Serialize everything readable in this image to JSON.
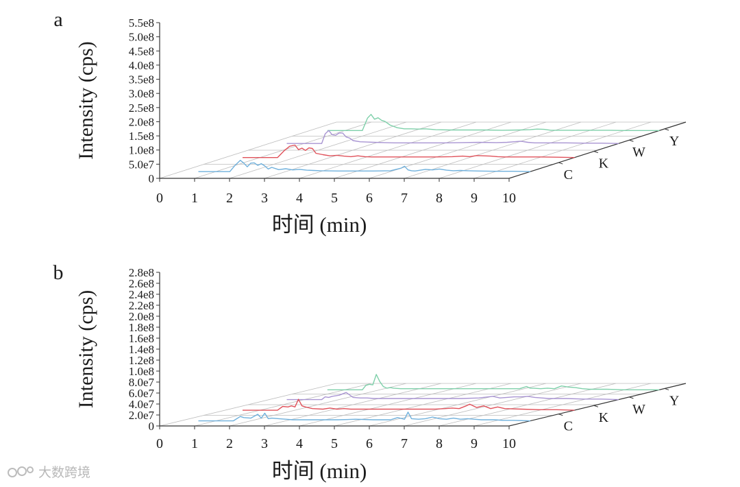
{
  "chart_data": [
    {
      "type": "line",
      "panel_label": "a",
      "ylabel": "Intensity (cps)",
      "xlabel": "时间 (min)",
      "xlim": [
        0,
        10
      ],
      "ylim": [
        0,
        55000000
      ],
      "x_ticks": [
        0,
        1,
        2,
        3,
        4,
        5,
        6,
        7,
        8,
        9,
        10
      ],
      "x_tick_labels": [
        "0",
        "1",
        "2",
        "3",
        "4",
        "5",
        "6",
        "7",
        "8",
        "9",
        "10"
      ],
      "y_ticks": [
        0,
        50000000,
        100000000,
        150000000,
        200000000,
        250000000,
        300000000,
        350000000,
        400000000,
        450000000,
        500000000,
        550000000
      ],
      "y_tick_labels": [
        "0",
        "5.0e7",
        "1.0e8",
        "1.5e8",
        "2.0e8",
        "2.5e8",
        "3.0e8",
        "3.5e8",
        "4.0e8",
        "4.5e8",
        "5.0e8",
        "5.5e8"
      ],
      "depth_categories": [
        "C",
        "K",
        "W",
        "Y"
      ],
      "grid": true,
      "series": [
        {
          "name": "C",
          "color": "#6fb0dc",
          "x": [
            0.5,
            1.0,
            1.4,
            1.55,
            1.7,
            1.8,
            1.9,
            2.0,
            2.1,
            2.2,
            2.3,
            2.4,
            2.5,
            2.6,
            2.8,
            3.0,
            3.2,
            3.4,
            3.6,
            3.8,
            4.0,
            4.5,
            5.0,
            5.5,
            6.0,
            6.3,
            6.4,
            6.5,
            6.6,
            6.7,
            7.0,
            7.2,
            7.4,
            7.6,
            7.8,
            8.0,
            8.2,
            8.5,
            9.0,
            9.5,
            10.0
          ],
          "y": [
            0,
            0,
            0,
            22000000,
            40000000,
            30000000,
            17000000,
            30000000,
            31000000,
            22000000,
            28000000,
            20000000,
            9000000,
            15000000,
            7000000,
            10000000,
            6000000,
            8000000,
            5000000,
            4000000,
            3000000,
            2000000,
            2000000,
            2000000,
            3000000,
            12000000,
            19000000,
            6000000,
            3000000,
            2000000,
            8000000,
            6000000,
            9000000,
            5000000,
            3000000,
            4000000,
            3000000,
            2000000,
            1000000,
            1000000,
            0
          ]
        },
        {
          "name": "K",
          "color": "#e0515a",
          "x": [
            0.5,
            1.0,
            1.5,
            1.7,
            1.85,
            2.0,
            2.1,
            2.2,
            2.3,
            2.4,
            2.5,
            2.6,
            2.8,
            3.0,
            3.2,
            3.4,
            3.6,
            3.8,
            4.0,
            4.2,
            4.5,
            5.0,
            5.5,
            6.0,
            6.5,
            6.8,
            7.0,
            7.2,
            7.4,
            7.6,
            7.8,
            8.0,
            8.5,
            9.0,
            9.5,
            10.0
          ],
          "y": [
            0,
            0,
            0,
            25000000,
            40000000,
            44000000,
            28000000,
            33000000,
            25000000,
            34000000,
            32000000,
            15000000,
            10000000,
            6000000,
            8000000,
            5000000,
            3000000,
            6000000,
            3000000,
            2000000,
            2000000,
            2000000,
            2000000,
            2000000,
            3000000,
            5000000,
            3000000,
            7000000,
            6000000,
            5000000,
            3000000,
            2000000,
            2000000,
            2000000,
            1000000,
            0
          ]
        },
        {
          "name": "W",
          "color": "#a894d2",
          "x": [
            0.5,
            1.0,
            1.5,
            1.6,
            1.7,
            1.8,
            1.9,
            2.0,
            2.1,
            2.2,
            2.3,
            2.4,
            2.6,
            2.8,
            3.0,
            3.3,
            3.6,
            4.0,
            4.5,
            5.0,
            5.5,
            6.0,
            6.5,
            6.8,
            7.0,
            7.2,
            7.4,
            7.6,
            8.0,
            8.5,
            9.0,
            9.5,
            10.0
          ],
          "y": [
            0,
            0,
            0,
            34000000,
            46000000,
            31000000,
            29000000,
            37000000,
            37000000,
            23000000,
            19000000,
            10000000,
            6000000,
            5000000,
            4000000,
            3000000,
            2000000,
            2000000,
            2000000,
            2000000,
            3000000,
            4000000,
            3000000,
            4000000,
            6000000,
            8000000,
            4000000,
            2000000,
            2000000,
            2000000,
            1000000,
            1000000,
            0
          ]
        },
        {
          "name": "Y",
          "color": "#7fd0aa",
          "x": [
            0.5,
            1.0,
            1.5,
            1.65,
            1.75,
            1.85,
            1.95,
            2.05,
            2.15,
            2.3,
            2.5,
            2.7,
            2.9,
            3.1,
            3.3,
            3.6,
            4.0,
            4.5,
            5.0,
            5.5,
            6.0,
            6.3,
            6.5,
            6.7,
            6.9,
            7.2,
            7.5,
            8.0,
            8.5,
            9.0,
            9.5,
            10.0
          ],
          "y": [
            0,
            0,
            0,
            44000000,
            57000000,
            40000000,
            45000000,
            36000000,
            32000000,
            19000000,
            10000000,
            6000000,
            6000000,
            5000000,
            6000000,
            3000000,
            2000000,
            2000000,
            2000000,
            1000000,
            2000000,
            3000000,
            5000000,
            4000000,
            1000000,
            1000000,
            1000000,
            1000000,
            1000000,
            0,
            0,
            0
          ]
        }
      ]
    },
    {
      "type": "line",
      "panel_label": "b",
      "ylabel": "Intensity (cps)",
      "xlabel": "时间 (min)",
      "xlim": [
        0,
        10
      ],
      "ylim": [
        0,
        28000000
      ],
      "x_ticks": [
        0,
        1,
        2,
        3,
        4,
        5,
        6,
        7,
        8,
        9,
        10
      ],
      "x_tick_labels": [
        "0",
        "1",
        "2",
        "3",
        "4",
        "5",
        "6",
        "7",
        "8",
        "9",
        "10"
      ],
      "y_ticks": [
        0,
        20000000,
        40000000,
        60000000,
        80000000,
        100000000,
        120000000,
        140000000,
        160000000,
        180000000,
        200000000,
        220000000,
        240000000,
        260000000,
        280000000
      ],
      "y_tick_labels": [
        "0",
        "2.0e7",
        "4.0e7",
        "6.0e7",
        "8.0e7",
        "1.0e8",
        "1.2e8",
        "1.4e8",
        "1.6e8",
        "1.8e8",
        "2.0e8",
        "2.2e8",
        "2.4e8",
        "2.6e8",
        "2.8e8"
      ],
      "depth_categories": [
        "C",
        "K",
        "W",
        "Y"
      ],
      "grid": true,
      "series": [
        {
          "name": "C",
          "color": "#6fb0dc",
          "x": [
            0.5,
            1.0,
            1.5,
            1.6,
            1.7,
            1.8,
            2.0,
            2.2,
            2.3,
            2.4,
            2.5,
            2.6,
            2.8,
            3.0,
            3.2,
            3.5,
            4.0,
            4.5,
            5.0,
            5.5,
            6.0,
            6.2,
            6.4,
            6.5,
            6.6,
            6.8,
            7.0,
            7.2,
            7.4,
            7.6,
            7.8,
            8.0,
            8.2,
            8.4,
            8.6,
            8.8,
            9.0,
            9.2,
            9.5,
            10.0
          ],
          "y": [
            0,
            0,
            0,
            4000000,
            8000000,
            6000000,
            5000000,
            12000000,
            5000000,
            14000000,
            4000000,
            5000000,
            4000000,
            3000000,
            2000000,
            2000000,
            2000000,
            2000000,
            3000000,
            2000000,
            2000000,
            6000000,
            3000000,
            16000000,
            4000000,
            3000000,
            4000000,
            7000000,
            4000000,
            3000000,
            5000000,
            3000000,
            4000000,
            3000000,
            2000000,
            2000000,
            2000000,
            1000000,
            1000000,
            0
          ]
        },
        {
          "name": "K",
          "color": "#e0515a",
          "x": [
            0.5,
            1.0,
            1.5,
            1.65,
            1.8,
            1.9,
            2.0,
            2.1,
            2.2,
            2.3,
            2.5,
            2.8,
            3.0,
            3.2,
            3.4,
            3.6,
            4.0,
            4.5,
            5.0,
            5.5,
            6.0,
            6.3,
            6.5,
            6.7,
            6.9,
            7.0,
            7.2,
            7.4,
            7.6,
            7.8,
            8.0,
            8.5,
            9.0,
            9.5,
            10.0
          ],
          "y": [
            0,
            0,
            0,
            7000000,
            6000000,
            8000000,
            6000000,
            20000000,
            8000000,
            6000000,
            3000000,
            2000000,
            4000000,
            2000000,
            3000000,
            2000000,
            2000000,
            2000000,
            2000000,
            2000000,
            2000000,
            3000000,
            4000000,
            3000000,
            8000000,
            11000000,
            5000000,
            8000000,
            3000000,
            6000000,
            3000000,
            2000000,
            1000000,
            1000000,
            0
          ]
        },
        {
          "name": "W",
          "color": "#a894d2",
          "x": [
            0.5,
            1.0,
            1.5,
            1.6,
            1.7,
            1.8,
            2.0,
            2.2,
            2.4,
            2.6,
            2.8,
            3.0,
            3.3,
            3.6,
            4.0,
            4.5,
            5.0,
            5.5,
            6.0,
            6.4,
            6.6,
            6.8,
            7.0,
            7.2,
            7.4,
            7.6,
            7.8,
            8.0,
            8.5,
            9.0,
            9.5,
            10.0
          ],
          "y": [
            0,
            0,
            0,
            5000000,
            4000000,
            6000000,
            8000000,
            13000000,
            4000000,
            3000000,
            3000000,
            2000000,
            2000000,
            2000000,
            2000000,
            2000000,
            2000000,
            2000000,
            3000000,
            6000000,
            3000000,
            4000000,
            5000000,
            5000000,
            6000000,
            4000000,
            3000000,
            2000000,
            2000000,
            1000000,
            1000000,
            0
          ]
        },
        {
          "name": "Y",
          "color": "#7fd0aa",
          "x": [
            0.5,
            1.0,
            1.5,
            1.6,
            1.7,
            1.8,
            1.9,
            2.0,
            2.1,
            2.2,
            2.3,
            2.4,
            2.6,
            2.8,
            3.0,
            3.2,
            3.5,
            4.0,
            4.5,
            5.0,
            5.5,
            6.0,
            6.2,
            6.3,
            6.4,
            6.6,
            6.8,
            7.0,
            7.2,
            7.4,
            7.6,
            7.8,
            8.0,
            8.5,
            9.0,
            9.5,
            10.0
          ],
          "y": [
            0,
            0,
            0,
            8000000,
            10000000,
            9000000,
            28000000,
            15000000,
            6000000,
            3000000,
            4000000,
            3000000,
            2000000,
            2000000,
            2000000,
            2000000,
            2000000,
            2000000,
            2000000,
            2000000,
            2000000,
            2000000,
            6000000,
            3000000,
            3000000,
            2000000,
            3000000,
            2000000,
            7000000,
            5000000,
            4000000,
            2000000,
            1000000,
            1000000,
            0,
            0,
            0
          ]
        }
      ]
    }
  ],
  "watermark": {
    "text": "大数跨境"
  }
}
